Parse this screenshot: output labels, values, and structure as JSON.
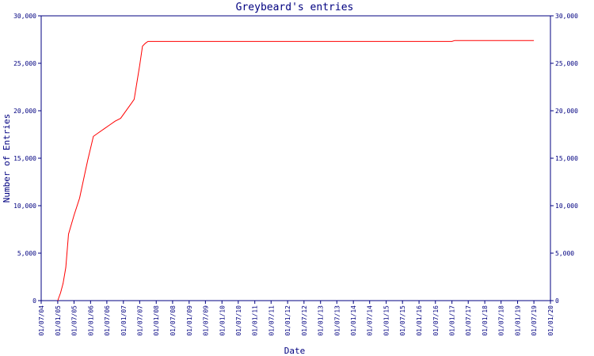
{
  "chart_data": {
    "type": "line",
    "title": "Greybeard's entries",
    "xlabel": "Date",
    "ylabel": "Number of Entries",
    "ylim": [
      0,
      30000
    ],
    "y_ticks": [
      0,
      5000,
      10000,
      15000,
      20000,
      25000,
      30000
    ],
    "y_tick_labels": [
      "0",
      "5,000",
      "10,000",
      "15,000",
      "20,000",
      "25,000",
      "30,000"
    ],
    "x_tick_labels": [
      "01/07/04",
      "01/01/05",
      "01/07/05",
      "01/01/06",
      "01/07/06",
      "01/01/07",
      "01/07/07",
      "01/01/08",
      "01/07/08",
      "01/01/09",
      "01/07/09",
      "01/01/10",
      "01/07/10",
      "01/01/11",
      "01/07/11",
      "01/01/12",
      "01/07/12",
      "01/01/13",
      "01/07/13",
      "01/01/14",
      "01/07/14",
      "01/01/15",
      "01/07/15",
      "01/01/16",
      "01/07/16",
      "01/01/17",
      "01/07/17",
      "01/01/18",
      "01/07/18",
      "01/01/19",
      "01/07/19",
      "01/01/20"
    ],
    "grid": false,
    "series": [
      {
        "color": "#ff0000",
        "x": [
          "01/01/05",
          "01/02/05",
          "01/03/05",
          "01/04/05",
          "01/05/05",
          "01/07/05",
          "01/09/05",
          "01/11/05",
          "01/12/05",
          "01/02/06",
          "01/04/06",
          "01/06/06",
          "01/08/06",
          "01/10/06",
          "01/12/06",
          "01/04/07",
          "01/05/07",
          "01/06/07",
          "01/07/07",
          "01/08/07",
          "01/09/07",
          "01/10/07",
          "01/11/07",
          "01/12/07",
          "01/01/08",
          "01/07/09",
          "01/07/14",
          "01/07/16",
          "01/01/17",
          "01/02/17",
          "01/07/19"
        ],
        "y": [
          0,
          800,
          1800,
          3500,
          7000,
          9000,
          10800,
          13500,
          14800,
          17300,
          17700,
          18100,
          18500,
          18900,
          19200,
          20800,
          21200,
          23000,
          24800,
          26800,
          27100,
          27300,
          27300,
          27300,
          27300,
          27300,
          27300,
          27300,
          27300,
          27400,
          27400
        ]
      }
    ]
  }
}
